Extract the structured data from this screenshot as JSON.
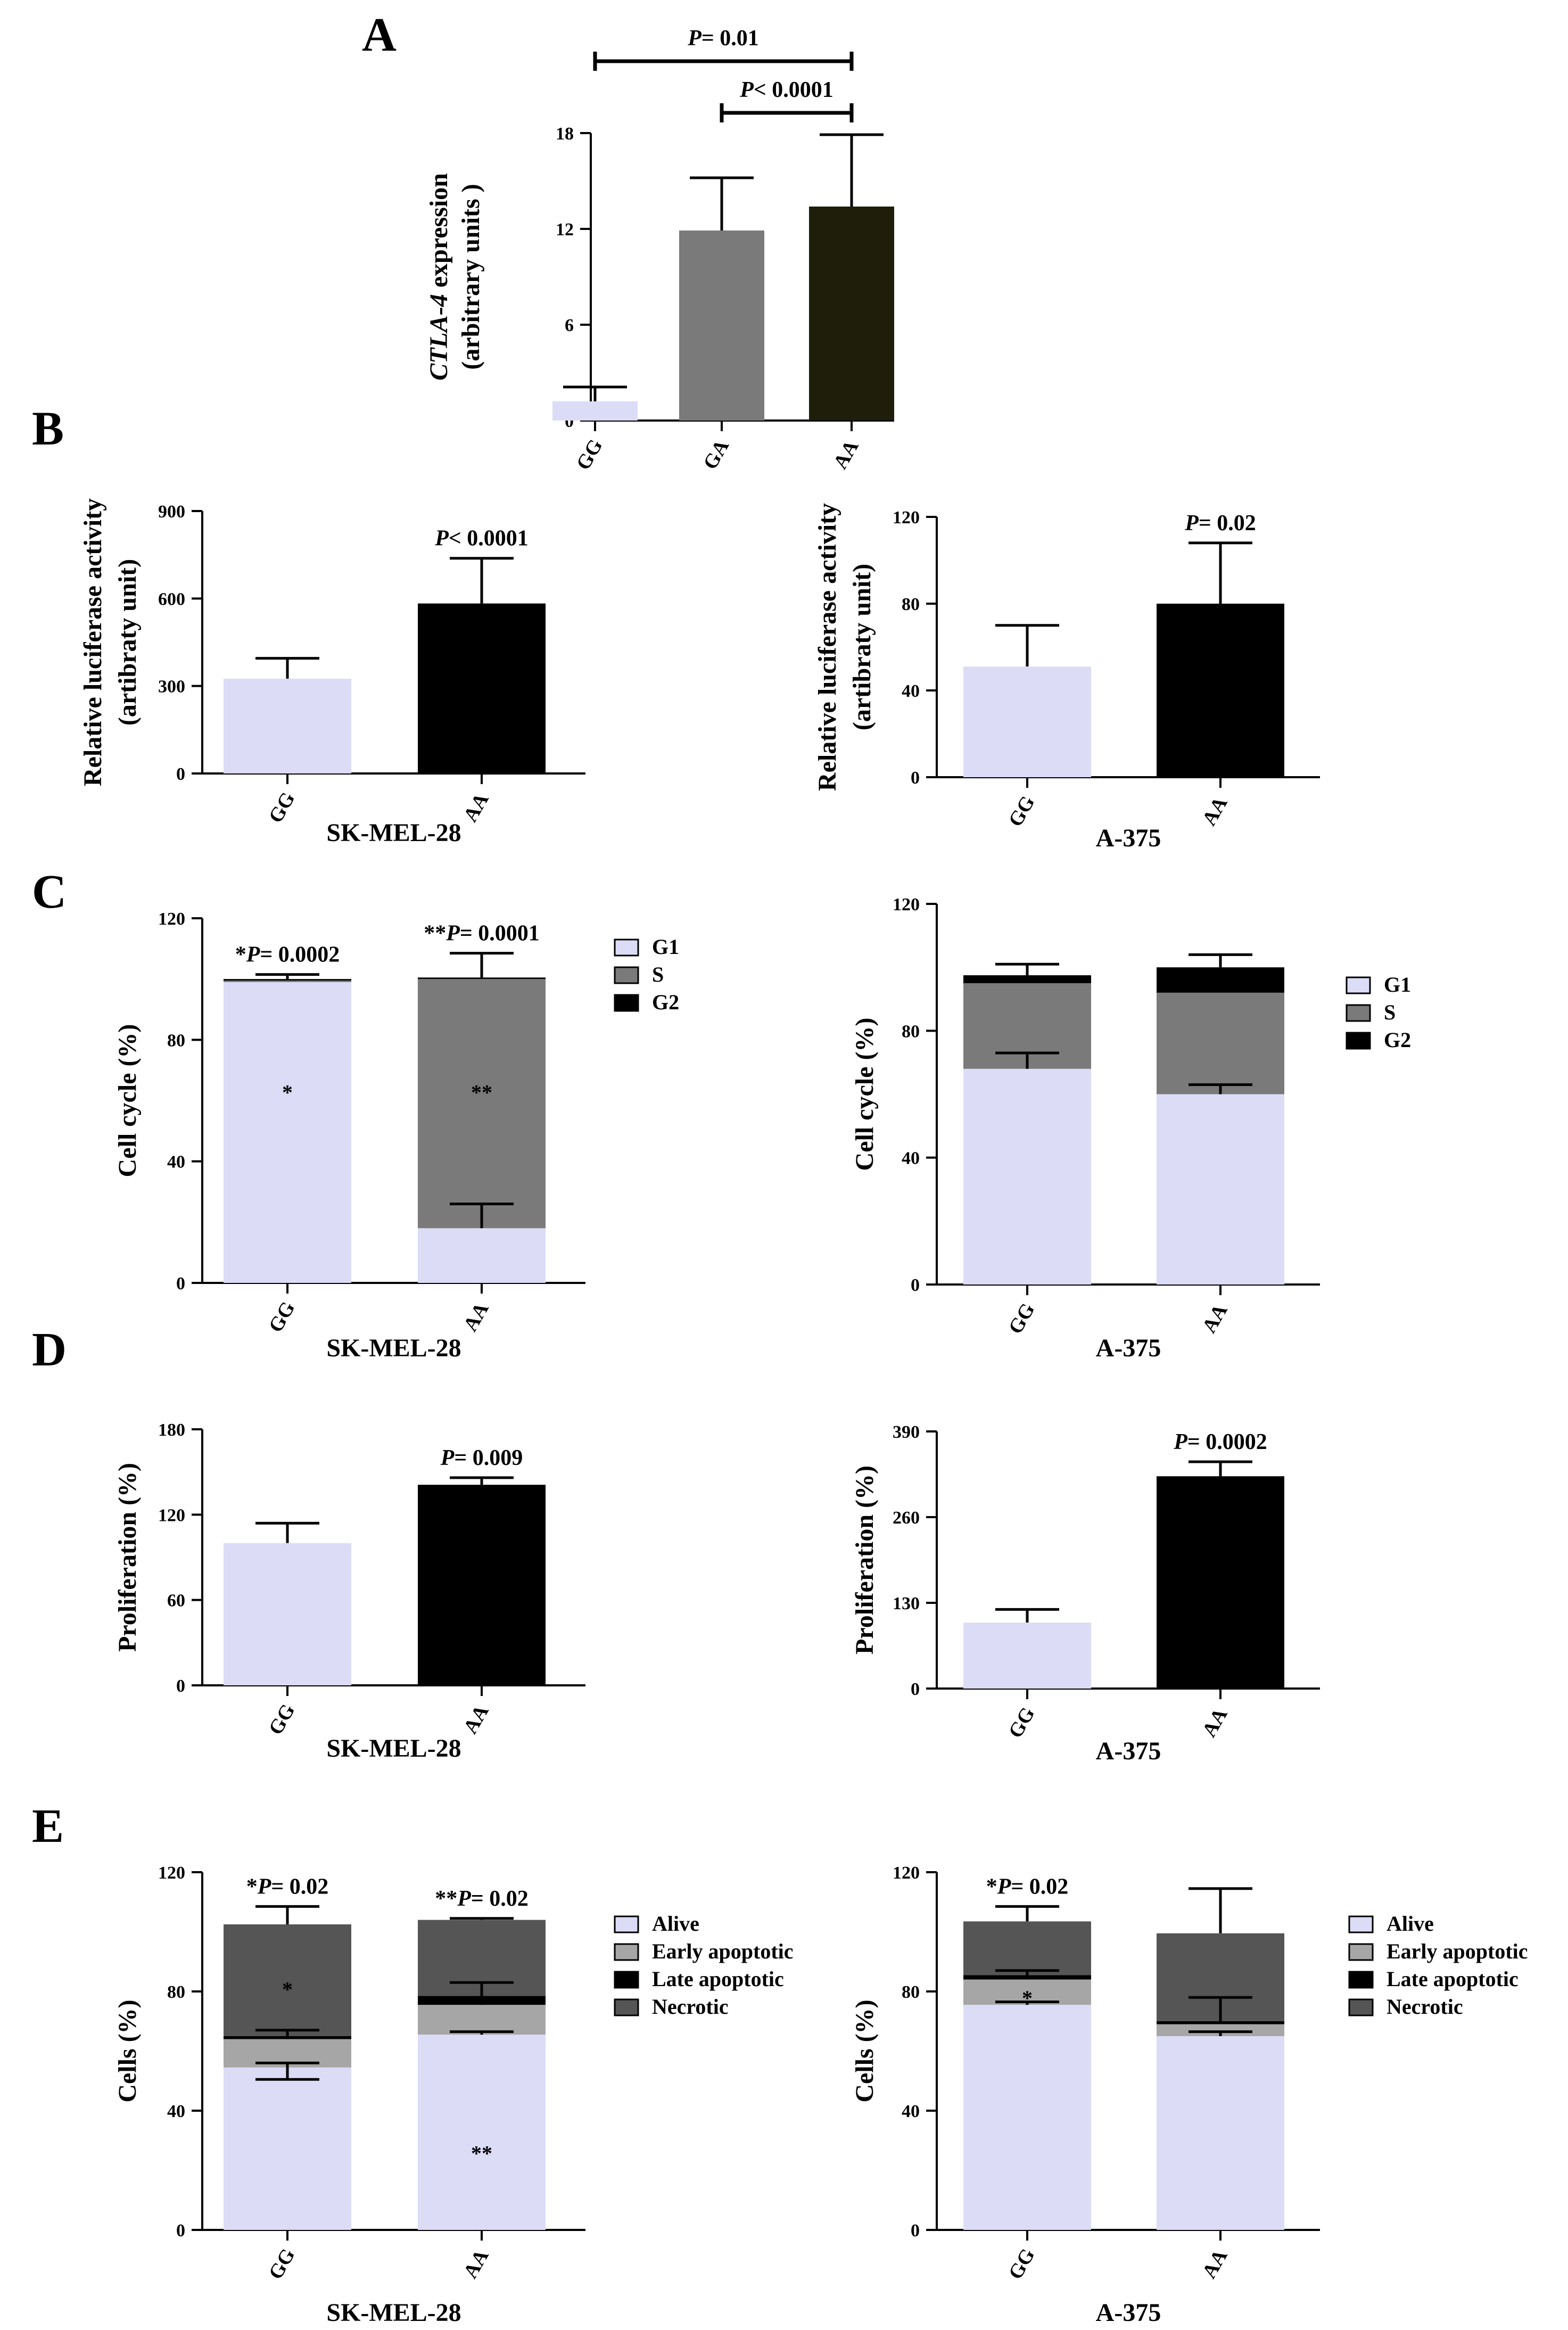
{
  "figure": {
    "panel_letters": [
      "A",
      "B",
      "C",
      "D",
      "E"
    ]
  },
  "colors": {
    "light": "#dcdcf7",
    "gray": "#7a7a7a",
    "darkolive": "#1e1e0a",
    "black": "#000000",
    "earlyGray": "#a6a6a6",
    "necrotic": "#555555"
  },
  "chart_data": [
    {
      "id": "A",
      "type": "bar",
      "title": "",
      "ylabel": [
        "CTLA-4 expression",
        "(arbitrary units )"
      ],
      "ylabel_italic_part": "CTLA-4",
      "categories": [
        "GG",
        "GA",
        "AA"
      ],
      "values": [
        1.2,
        11.9,
        13.4
      ],
      "errors": [
        0.9,
        3.3,
        4.5
      ],
      "bar_colors": [
        "#dcdcf7",
        "#7a7a7a",
        "#1e1e0a"
      ],
      "ylim": [
        0,
        18
      ],
      "yticks": [
        0,
        6,
        12,
        18
      ],
      "brackets": [
        {
          "from": "GG",
          "to": "AA",
          "p_label": "P",
          "p_text": "= 0.01"
        },
        {
          "from": "GA",
          "to": "AA",
          "p_label": "P",
          "p_text": "< 0.0001"
        }
      ]
    },
    {
      "id": "B1",
      "type": "bar",
      "ylabel": [
        "Relative luciferase activity",
        "(artibraty unit)"
      ],
      "xlabel": "SK-MEL-28",
      "categories": [
        "GG",
        "AA"
      ],
      "values": [
        325,
        583
      ],
      "errors": [
        70,
        155
      ],
      "bar_colors": [
        "#dcdcf7",
        "#000000"
      ],
      "ylim": [
        0,
        900
      ],
      "yticks": [
        0,
        300,
        600,
        900
      ],
      "annotations": [
        {
          "over": "AA",
          "p_label": "P",
          "p_text": "< 0.0001"
        }
      ]
    },
    {
      "id": "B2",
      "type": "bar",
      "ylabel": [
        "Relative luciferase activity",
        "(artibraty unit)"
      ],
      "xlabel": "A-375",
      "categories": [
        "GG",
        "AA"
      ],
      "values": [
        51,
        80
      ],
      "errors": [
        19,
        28
      ],
      "bar_colors": [
        "#dcdcf7",
        "#000000"
      ],
      "ylim": [
        0,
        120
      ],
      "yticks": [
        0,
        40,
        80,
        120
      ],
      "annotations": [
        {
          "over": "AA",
          "p_label": "P",
          "p_text": "= 0.02"
        }
      ]
    },
    {
      "id": "C1",
      "type": "stacked_bar",
      "ylabel": [
        "Cell cycle (%)"
      ],
      "xlabel": "SK-MEL-28",
      "categories": [
        "GG",
        "AA"
      ],
      "series": [
        {
          "name": "G1",
          "values": [
            99,
            18
          ],
          "errors": [
            0,
            8
          ],
          "color": "#dcdcf7"
        },
        {
          "name": "S",
          "values": [
            0.5,
            82
          ],
          "errors": [
            0,
            0
          ],
          "color": "#7a7a7a"
        },
        {
          "name": "G2",
          "values": [
            0.5,
            0.5
          ],
          "errors": [
            1.5,
            8
          ],
          "color": "#000000"
        }
      ],
      "ylim": [
        0,
        120
      ],
      "yticks": [
        0,
        40,
        80,
        120
      ],
      "annotations": [
        {
          "over": "GG",
          "p_label": "*P",
          "p_text": "= 0.0002"
        },
        {
          "over": "AA",
          "p_label": "**P",
          "p_text": "= 0.0001"
        }
      ],
      "inner_marks": [
        {
          "cat": "GG",
          "y": 63,
          "text": "*"
        },
        {
          "cat": "AA",
          "y": 63,
          "text": "**"
        }
      ],
      "legend": [
        "G1",
        "S",
        "G2"
      ]
    },
    {
      "id": "C2",
      "type": "stacked_bar",
      "ylabel": [
        "Cell cycle (%)"
      ],
      "xlabel": "A-375",
      "categories": [
        "GG",
        "AA"
      ],
      "series": [
        {
          "name": "G1",
          "values": [
            68,
            60
          ],
          "errors": [
            5,
            3
          ],
          "color": "#dcdcf7"
        },
        {
          "name": "S",
          "values": [
            27,
            32
          ],
          "errors": [
            0,
            0
          ],
          "color": "#7a7a7a"
        },
        {
          "name": "G2",
          "values": [
            2.5,
            8
          ],
          "errors": [
            3.5,
            4
          ],
          "color": "#000000"
        }
      ],
      "ylim": [
        0,
        120
      ],
      "yticks": [
        0,
        40,
        80,
        120
      ],
      "legend": [
        "G1",
        "S",
        "G2"
      ]
    },
    {
      "id": "D1",
      "type": "bar",
      "ylabel": [
        "Proliferation (%)"
      ],
      "xlabel": "SK-MEL-28",
      "categories": [
        "GG",
        "AA"
      ],
      "values": [
        100,
        141
      ],
      "errors": [
        14,
        5
      ],
      "bar_colors": [
        "#dcdcf7",
        "#000000"
      ],
      "ylim": [
        0,
        180
      ],
      "yticks": [
        0,
        60,
        120,
        180
      ],
      "annotations": [
        {
          "over": "AA",
          "p_label": "P",
          "p_text": "= 0.009"
        }
      ]
    },
    {
      "id": "D2",
      "type": "bar",
      "ylabel": [
        "Proliferation (%)"
      ],
      "xlabel": "A-375",
      "categories": [
        "GG",
        "AA"
      ],
      "values": [
        100,
        322
      ],
      "errors": [
        20,
        22
      ],
      "bar_colors": [
        "#dcdcf7",
        "#000000"
      ],
      "ylim": [
        0,
        390
      ],
      "yticks": [
        0,
        130,
        260,
        390
      ],
      "annotations": [
        {
          "over": "AA",
          "p_label": "P",
          "p_text": "= 0.0002"
        }
      ]
    },
    {
      "id": "E1",
      "type": "stacked_bar",
      "ylabel": [
        "Cells (%)"
      ],
      "xlabel": "SK-MEL-28",
      "categories": [
        "GG",
        "AA"
      ],
      "series": [
        {
          "name": "Alive",
          "values": [
            54.5,
            65.5
          ],
          "errors": [
            1.5,
            1
          ],
          "color": "#dcdcf7"
        },
        {
          "name": "Early apoptotic",
          "values": [
            9.5,
            10
          ],
          "errors": [
            3,
            7.5
          ],
          "color": "#a6a6a6"
        },
        {
          "name": "Late apoptotic",
          "values": [
            1,
            3
          ],
          "errors": [
            0,
            0
          ],
          "color": "#000000"
        },
        {
          "name": "Necrotic",
          "values": [
            37.5,
            25.5
          ],
          "errors": [
            6,
            0.5
          ],
          "color": "#555555"
        }
      ],
      "lower_errors": [
        {
          "cat": "GG",
          "y": 54.5,
          "err": 1.5
        }
      ],
      "ylim": [
        0,
        120
      ],
      "yticks": [
        0,
        40,
        80,
        120
      ],
      "annotations": [
        {
          "over": "GG",
          "p_label": "*P",
          "p_text": "= 0.02"
        },
        {
          "over": "AA",
          "p_label": "**P",
          "p_text": "= 0.02"
        }
      ],
      "inner_marks": [
        {
          "cat": "GG",
          "y": 81,
          "text": "*"
        },
        {
          "cat": "AA",
          "y": 26,
          "text": "**"
        }
      ],
      "legend": [
        "Alive",
        "Early apoptotic",
        "Late apoptotic",
        "Necrotic"
      ]
    },
    {
      "id": "E2",
      "type": "stacked_bar",
      "ylabel": [
        "Cells (%)"
      ],
      "xlabel": "A-375",
      "categories": [
        "GG",
        "AA"
      ],
      "series": [
        {
          "name": "Alive",
          "values": [
            75.5,
            65
          ],
          "errors": [
            1,
            1.5
          ],
          "color": "#dcdcf7"
        },
        {
          "name": "Early apoptotic",
          "values": [
            8.5,
            4
          ],
          "errors": [
            3,
            0
          ],
          "color": "#a6a6a6"
        },
        {
          "name": "Late apoptotic",
          "values": [
            1.5,
            1
          ],
          "errors": [
            0,
            8
          ],
          "color": "#000000"
        },
        {
          "name": "Necrotic",
          "values": [
            18,
            29.5
          ],
          "errors": [
            5,
            15
          ],
          "color": "#555555"
        }
      ],
      "ylim": [
        0,
        120
      ],
      "yticks": [
        0,
        40,
        80,
        120
      ],
      "annotations": [
        {
          "over": "GG",
          "p_label": "*P",
          "p_text": "= 0.02"
        }
      ],
      "inner_marks": [
        {
          "cat": "GG",
          "y": 78,
          "text": "*"
        }
      ],
      "legend": [
        "Alive",
        "Early apoptotic",
        "Late apoptotic",
        "Necrotic"
      ]
    }
  ]
}
